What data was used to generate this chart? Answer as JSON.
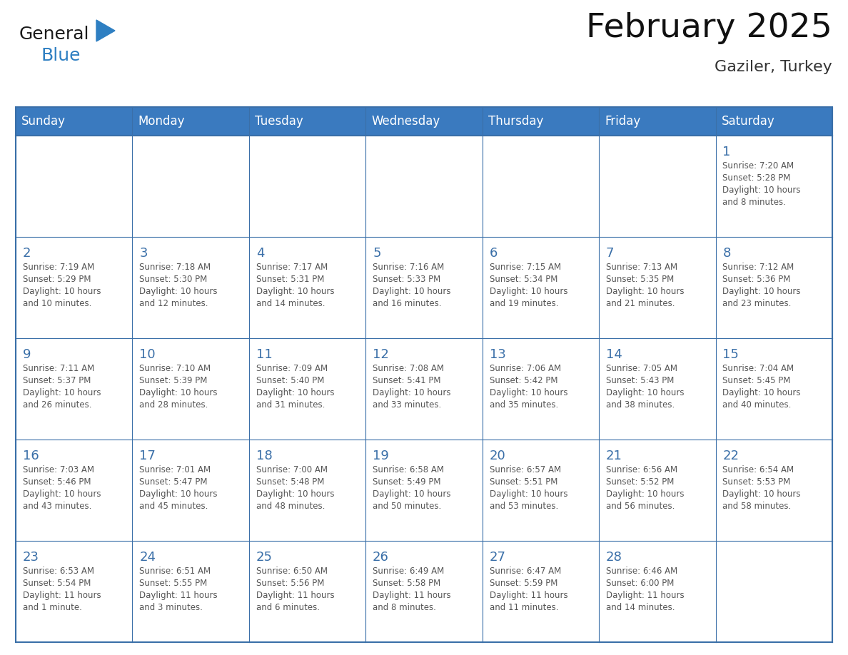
{
  "title": "February 2025",
  "subtitle": "Gaziler, Turkey",
  "header_color": "#3a7abf",
  "header_text_color": "#ffffff",
  "cell_bg_color": "#ffffff",
  "cell_alt_bg": "#f5f5f5",
  "grid_line_color": "#3a6fa8",
  "day_number_color": "#3a6fa8",
  "text_color": "#555555",
  "days_of_week": [
    "Sunday",
    "Monday",
    "Tuesday",
    "Wednesday",
    "Thursday",
    "Friday",
    "Saturday"
  ],
  "weeks": [
    [
      {
        "day": null,
        "info": null
      },
      {
        "day": null,
        "info": null
      },
      {
        "day": null,
        "info": null
      },
      {
        "day": null,
        "info": null
      },
      {
        "day": null,
        "info": null
      },
      {
        "day": null,
        "info": null
      },
      {
        "day": 1,
        "info": "Sunrise: 7:20 AM\nSunset: 5:28 PM\nDaylight: 10 hours\nand 8 minutes."
      }
    ],
    [
      {
        "day": 2,
        "info": "Sunrise: 7:19 AM\nSunset: 5:29 PM\nDaylight: 10 hours\nand 10 minutes."
      },
      {
        "day": 3,
        "info": "Sunrise: 7:18 AM\nSunset: 5:30 PM\nDaylight: 10 hours\nand 12 minutes."
      },
      {
        "day": 4,
        "info": "Sunrise: 7:17 AM\nSunset: 5:31 PM\nDaylight: 10 hours\nand 14 minutes."
      },
      {
        "day": 5,
        "info": "Sunrise: 7:16 AM\nSunset: 5:33 PM\nDaylight: 10 hours\nand 16 minutes."
      },
      {
        "day": 6,
        "info": "Sunrise: 7:15 AM\nSunset: 5:34 PM\nDaylight: 10 hours\nand 19 minutes."
      },
      {
        "day": 7,
        "info": "Sunrise: 7:13 AM\nSunset: 5:35 PM\nDaylight: 10 hours\nand 21 minutes."
      },
      {
        "day": 8,
        "info": "Sunrise: 7:12 AM\nSunset: 5:36 PM\nDaylight: 10 hours\nand 23 minutes."
      }
    ],
    [
      {
        "day": 9,
        "info": "Sunrise: 7:11 AM\nSunset: 5:37 PM\nDaylight: 10 hours\nand 26 minutes."
      },
      {
        "day": 10,
        "info": "Sunrise: 7:10 AM\nSunset: 5:39 PM\nDaylight: 10 hours\nand 28 minutes."
      },
      {
        "day": 11,
        "info": "Sunrise: 7:09 AM\nSunset: 5:40 PM\nDaylight: 10 hours\nand 31 minutes."
      },
      {
        "day": 12,
        "info": "Sunrise: 7:08 AM\nSunset: 5:41 PM\nDaylight: 10 hours\nand 33 minutes."
      },
      {
        "day": 13,
        "info": "Sunrise: 7:06 AM\nSunset: 5:42 PM\nDaylight: 10 hours\nand 35 minutes."
      },
      {
        "day": 14,
        "info": "Sunrise: 7:05 AM\nSunset: 5:43 PM\nDaylight: 10 hours\nand 38 minutes."
      },
      {
        "day": 15,
        "info": "Sunrise: 7:04 AM\nSunset: 5:45 PM\nDaylight: 10 hours\nand 40 minutes."
      }
    ],
    [
      {
        "day": 16,
        "info": "Sunrise: 7:03 AM\nSunset: 5:46 PM\nDaylight: 10 hours\nand 43 minutes."
      },
      {
        "day": 17,
        "info": "Sunrise: 7:01 AM\nSunset: 5:47 PM\nDaylight: 10 hours\nand 45 minutes."
      },
      {
        "day": 18,
        "info": "Sunrise: 7:00 AM\nSunset: 5:48 PM\nDaylight: 10 hours\nand 48 minutes."
      },
      {
        "day": 19,
        "info": "Sunrise: 6:58 AM\nSunset: 5:49 PM\nDaylight: 10 hours\nand 50 minutes."
      },
      {
        "day": 20,
        "info": "Sunrise: 6:57 AM\nSunset: 5:51 PM\nDaylight: 10 hours\nand 53 minutes."
      },
      {
        "day": 21,
        "info": "Sunrise: 6:56 AM\nSunset: 5:52 PM\nDaylight: 10 hours\nand 56 minutes."
      },
      {
        "day": 22,
        "info": "Sunrise: 6:54 AM\nSunset: 5:53 PM\nDaylight: 10 hours\nand 58 minutes."
      }
    ],
    [
      {
        "day": 23,
        "info": "Sunrise: 6:53 AM\nSunset: 5:54 PM\nDaylight: 11 hours\nand 1 minute."
      },
      {
        "day": 24,
        "info": "Sunrise: 6:51 AM\nSunset: 5:55 PM\nDaylight: 11 hours\nand 3 minutes."
      },
      {
        "day": 25,
        "info": "Sunrise: 6:50 AM\nSunset: 5:56 PM\nDaylight: 11 hours\nand 6 minutes."
      },
      {
        "day": 26,
        "info": "Sunrise: 6:49 AM\nSunset: 5:58 PM\nDaylight: 11 hours\nand 8 minutes."
      },
      {
        "day": 27,
        "info": "Sunrise: 6:47 AM\nSunset: 5:59 PM\nDaylight: 11 hours\nand 11 minutes."
      },
      {
        "day": 28,
        "info": "Sunrise: 6:46 AM\nSunset: 6:00 PM\nDaylight: 11 hours\nand 14 minutes."
      },
      {
        "day": null,
        "info": null
      }
    ]
  ],
  "logo_general_color": "#1a1a1a",
  "logo_blue_color": "#2e7fc2",
  "logo_triangle_color": "#2e7fc2",
  "title_fontsize": 34,
  "subtitle_fontsize": 16,
  "dow_fontsize": 12,
  "day_num_fontsize": 13,
  "info_fontsize": 8.5
}
